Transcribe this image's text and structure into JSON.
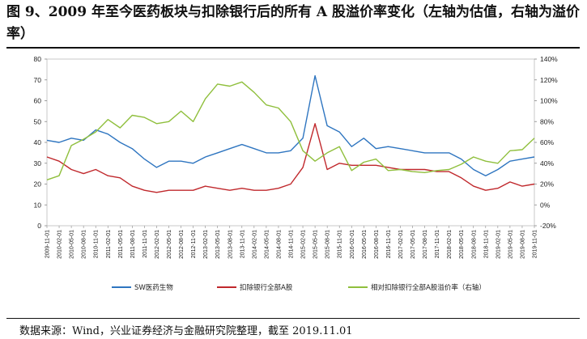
{
  "figure": {
    "title": "图 9、2009 年至今医药板块与扣除银行后的所有 A 股溢价率变化（左轴为估值，右轴为溢价率）",
    "source": "数据来源：Wind，兴业证券经济与金融研究院整理，截至 2019.11.01"
  },
  "chart_data": {
    "type": "line",
    "x": [
      "2009-11-01",
      "2010-02-01",
      "2010-05-01",
      "2010-08-01",
      "2010-11-01",
      "2011-02-01",
      "2011-05-01",
      "2011-08-01",
      "2011-11-01",
      "2012-02-01",
      "2012-05-01",
      "2012-08-01",
      "2012-11-01",
      "2013-02-01",
      "2013-05-01",
      "2013-08-01",
      "2013-11-01",
      "2014-02-01",
      "2014-05-01",
      "2014-08-01",
      "2014-11-01",
      "2015-02-01",
      "2015-05-01",
      "2015-08-01",
      "2015-11-01",
      "2016-02-01",
      "2016-05-01",
      "2016-08-01",
      "2016-11-01",
      "2017-02-01",
      "2017-05-01",
      "2017-08-01",
      "2017-11-01",
      "2018-02-01",
      "2018-05-01",
      "2018-08-01",
      "2018-11-01",
      "2019-02-01",
      "2019-05-01",
      "2019-08-01",
      "2019-11-01"
    ],
    "y_left": {
      "min": 0,
      "max": 80,
      "ticks": [
        "0",
        "10",
        "20",
        "30",
        "40",
        "50",
        "60",
        "70",
        "80"
      ]
    },
    "y_right": {
      "min": -20,
      "max": 140,
      "ticks": [
        "-20%",
        "0%",
        "20%",
        "40%",
        "60%",
        "80%",
        "100%",
        "120%",
        "140%"
      ]
    },
    "grid": false,
    "legend_position": "bottom",
    "series": [
      {
        "name": "SW医药生物",
        "axis": "left",
        "color": "#2e75c0",
        "values": [
          41,
          40,
          42,
          41,
          46,
          44,
          40,
          37,
          32,
          28,
          31,
          31,
          30,
          33,
          35,
          37,
          39,
          37,
          35,
          35,
          36,
          42,
          72,
          48,
          45,
          38,
          42,
          37,
          38,
          37,
          36,
          35,
          35,
          35,
          32,
          27,
          24,
          27,
          31,
          32,
          33
        ]
      },
      {
        "name": "扣除银行全部A股",
        "axis": "left",
        "color": "#c0282c",
        "values": [
          33,
          31,
          27,
          25,
          27,
          24,
          23,
          19,
          17,
          16,
          17,
          17,
          17,
          19,
          18,
          17,
          18,
          17,
          17,
          18,
          20,
          28,
          49,
          27,
          30,
          29,
          29,
          29,
          28,
          27,
          27,
          27,
          26,
          26,
          23,
          19,
          17,
          18,
          21,
          19,
          20
        ]
      },
      {
        "name": "相对扣除银行全部A股溢价率（右轴）",
        "axis": "right",
        "color": "#8fbf3c",
        "values": [
          24,
          28,
          57,
          63,
          70,
          82,
          74,
          86,
          84,
          78,
          80,
          90,
          80,
          102,
          116,
          114,
          118,
          108,
          96,
          93,
          80,
          52,
          42,
          50,
          56,
          33,
          41,
          44,
          33,
          34,
          32,
          31,
          33,
          34,
          39,
          46,
          42,
          40,
          52,
          53,
          64
        ]
      }
    ]
  }
}
